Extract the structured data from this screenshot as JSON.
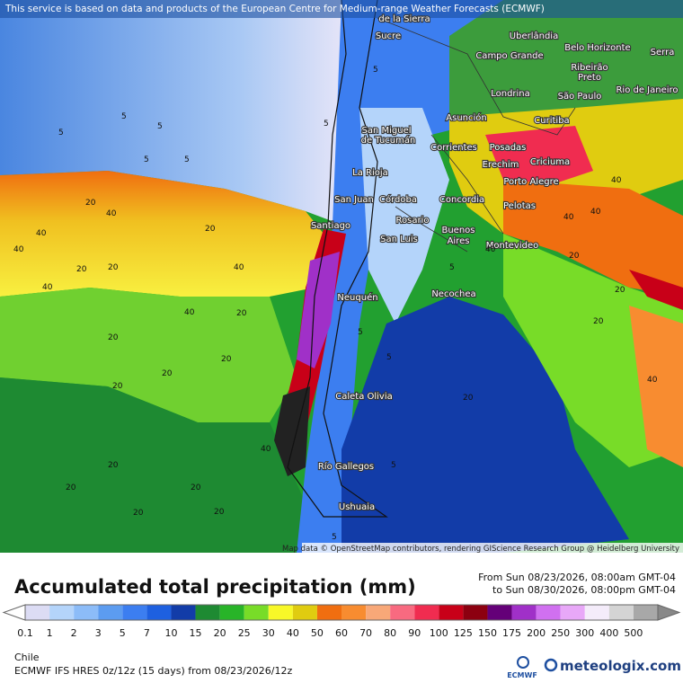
{
  "header": {
    "notice": "This service is based on data and products of the European Centre for Medium-range Weather Forecasts (ECMWF)"
  },
  "map": {
    "cities": [
      "de la Sierra",
      "Sucre",
      "Uberlândia",
      "Belo Horizonte",
      "Serra",
      "Campo Grande",
      "Ribeirão",
      "Preto",
      "Londrina",
      "São Paulo",
      "Rio de Janeiro",
      "Asunción",
      "Curitiba",
      "San Miguel",
      "de Tucumán",
      "Corrientes",
      "Posadas",
      "Erechim",
      "Criciuma",
      "La Rioja",
      "Porto Alegre",
      "San Juan",
      "Córdoba",
      "Concordia",
      "Pelotas",
      "Santiago",
      "Rosario",
      "Buenos",
      "Aires",
      "San Luis",
      "Montevideo",
      "Neuquén",
      "Necochea",
      "Caleta Olivia",
      "Río Gallegos",
      "Ushuaia"
    ],
    "contour_labels": [
      "5",
      "5",
      "5",
      "5",
      "5",
      "5",
      "5",
      "20",
      "40",
      "20",
      "40",
      "40",
      "20",
      "40",
      "20",
      "40",
      "20",
      "20",
      "20",
      "20",
      "20",
      "20",
      "40",
      "20",
      "20",
      "20",
      "20",
      "40",
      "5",
      "5",
      "5",
      "5",
      "20",
      "20",
      "40",
      "40",
      "40",
      "20",
      "40",
      "20",
      "40",
      "5"
    ],
    "attribution": "Map data © OpenStreetMap contributors, rendering GIScience Research Group @ Heidelberg University"
  },
  "legend": {
    "title": "Accumulated total precipitation (mm)",
    "period": [
      "From Sun 08/23/2026, 08:00am GMT-04",
      "to Sun 08/30/2026, 08:00pm GMT-04"
    ],
    "labels": [
      "0.1",
      "1",
      "2",
      "3",
      "5",
      "7",
      "10",
      "15",
      "20",
      "25",
      "30",
      "40",
      "50",
      "60",
      "70",
      "80",
      "90",
      "100",
      "125",
      "150",
      "175",
      "200",
      "250",
      "300",
      "400",
      "500"
    ],
    "colors": [
      "#dcdcf4",
      "#b4d4fa",
      "#8cbcf8",
      "#5c9cf0",
      "#3c7ef0",
      "#1e60e0",
      "#123ca8",
      "#1e8a32",
      "#28b428",
      "#78dc28",
      "#f8f828",
      "#e0cc10",
      "#f06e10",
      "#f88c30",
      "#f8a878",
      "#f86a80",
      "#f02c50",
      "#c80018",
      "#8c0010",
      "#640078",
      "#a030c8",
      "#d070f0",
      "#e8a8f8",
      "#f4ecfa",
      "#d4d4d4",
      "#a8a8a8"
    ]
  },
  "footer": {
    "region": "Chile",
    "model": "ECMWF IFS HRES 0z/12z (15 days) from 08/23/2026/12z",
    "ecmwf": "ECMWF",
    "brand": "meteologix.com"
  }
}
